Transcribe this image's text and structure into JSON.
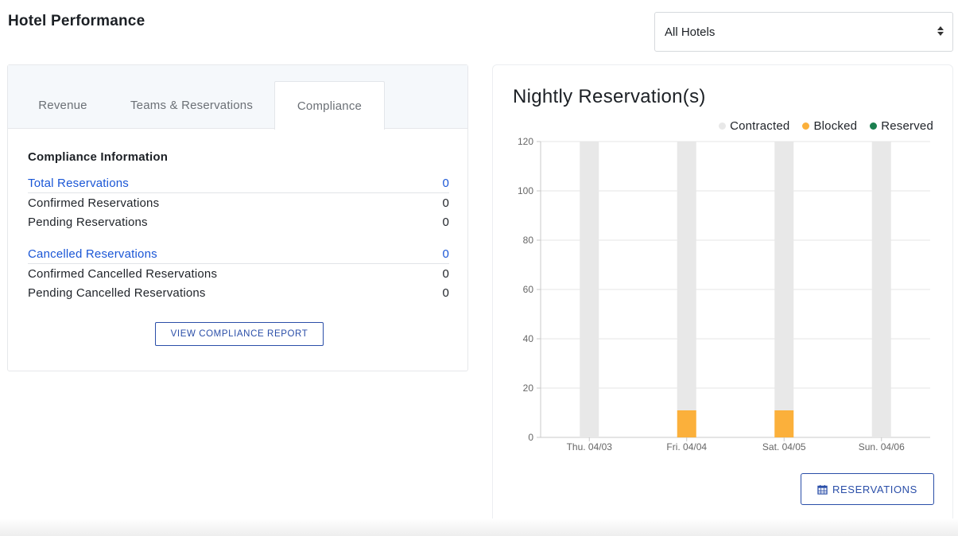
{
  "header": {
    "title": "Hotel Performance",
    "hotel_select": {
      "value": "All Hotels"
    }
  },
  "tabs": [
    {
      "label": "Revenue"
    },
    {
      "label": "Teams & Reservations"
    },
    {
      "label": "Compliance",
      "active": true
    }
  ],
  "compliance": {
    "title": "Compliance Information",
    "total": {
      "label": "Total Reservations",
      "value": "0"
    },
    "confirmed": {
      "label": "Confirmed Reservations",
      "value": "0"
    },
    "pending": {
      "label": "Pending Reservations",
      "value": "0"
    },
    "cancelled": {
      "label": "Cancelled Reservations",
      "value": "0"
    },
    "confirmed_cancelled": {
      "label": "Confirmed Cancelled Reservations",
      "value": "0"
    },
    "pending_cancelled": {
      "label": "Pending Cancelled Reservations",
      "value": "0"
    },
    "report_button": "VIEW COMPLIANCE REPORT"
  },
  "chart": {
    "reservations_button": "RESERVATIONS",
    "button_icon": "calendar-icon"
  },
  "colors": {
    "contracted": "#e8e8e8",
    "blocked": "#fbb03b",
    "reserved": "#1a7f4f",
    "link": "#1a56d6",
    "button": "#2a4ea8"
  },
  "chart_data": {
    "type": "bar",
    "stacked": true,
    "title": "Nightly Reservation(s)",
    "categories": [
      "Thu. 04/03",
      "Fri. 04/04",
      "Sat. 04/05",
      "Sun. 04/06"
    ],
    "series": [
      {
        "name": "Contracted",
        "values": [
          120,
          109,
          109,
          120
        ]
      },
      {
        "name": "Blocked",
        "values": [
          0,
          11,
          11,
          0
        ]
      },
      {
        "name": "Reserved",
        "values": [
          0,
          0,
          0,
          0
        ]
      }
    ],
    "yticks": [
      0,
      20,
      40,
      60,
      80,
      100,
      120
    ],
    "ylim": [
      0,
      120
    ],
    "legend_position": "top-right",
    "grid": true
  }
}
